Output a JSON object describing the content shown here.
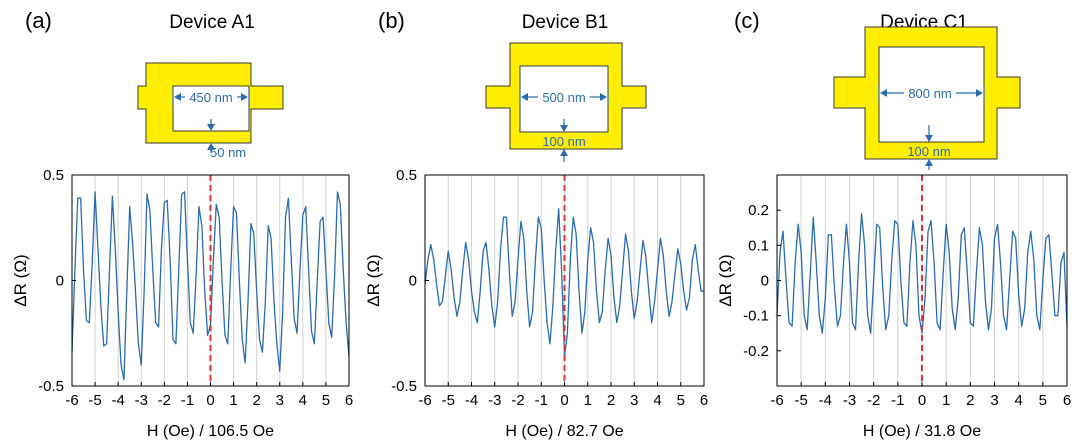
{
  "chart_data": [
    {
      "type": "line",
      "panel_label": "(a)",
      "title": "Device A1",
      "inset_labels": {
        "width": "450 nm",
        "line": "50 nm"
      },
      "xlabel": "H (Oe) / 106.5 Oe",
      "ylabel": "ΔR (Ω)",
      "xlim": [
        -6,
        6
      ],
      "ylim": [
        -0.5,
        0.5
      ],
      "xticks": [
        -6,
        -5,
        -4,
        -3,
        -2,
        -1,
        0,
        1,
        2,
        3,
        4,
        5,
        6
      ],
      "xtick_labels": [
        "-6",
        "-5",
        "-4",
        "-3",
        "-2",
        "-1",
        "0",
        "1",
        "2",
        "3",
        "4",
        "5",
        "6"
      ],
      "yticks": [
        -0.5,
        0,
        0.5
      ],
      "ytick_labels": [
        "-0.5",
        "0",
        "0.5"
      ],
      "grid": "vertical",
      "marker_line_x": 0,
      "series": [
        {
          "color": "#2a6bb0",
          "x": [
            -6,
            -5.875,
            -5.75,
            -5.625,
            -5.5,
            -5.375,
            -5.25,
            -5.125,
            -5,
            -4.875,
            -4.75,
            -4.625,
            -4.5,
            -4.375,
            -4.25,
            -4.125,
            -4,
            -3.875,
            -3.75,
            -3.625,
            -3.5,
            -3.375,
            -3.25,
            -3.125,
            -3,
            -2.875,
            -2.75,
            -2.625,
            -2.5,
            -2.375,
            -2.25,
            -2.125,
            -2,
            -1.875,
            -1.75,
            -1.625,
            -1.5,
            -1.375,
            -1.25,
            -1.125,
            -1,
            -0.875,
            -0.75,
            -0.625,
            -0.5,
            -0.375,
            -0.25,
            -0.125,
            0,
            0.125,
            0.25,
            0.375,
            0.5,
            0.625,
            0.75,
            0.875,
            1,
            1.125,
            1.25,
            1.375,
            1.5,
            1.625,
            1.75,
            1.875,
            2,
            2.125,
            2.25,
            2.375,
            2.5,
            2.625,
            2.75,
            2.875,
            3,
            3.125,
            3.25,
            3.375,
            3.5,
            3.625,
            3.75,
            3.875,
            4,
            4.125,
            4.25,
            4.375,
            4.5,
            4.625,
            4.75,
            4.875,
            5,
            5.125,
            5.25,
            5.375,
            5.5,
            5.625,
            5.75,
            5.875,
            6
          ],
          "y": [
            -0.34,
            0.05,
            0.39,
            0.39,
            0.05,
            -0.19,
            -0.2,
            0.08,
            0.42,
            0.15,
            -0.12,
            -0.31,
            -0.3,
            0.05,
            0.4,
            0.15,
            -0.15,
            -0.4,
            -0.47,
            -0.05,
            0.35,
            0.18,
            -0.05,
            -0.3,
            -0.4,
            -0.05,
            0.41,
            0.33,
            0.05,
            -0.2,
            -0.22,
            0.15,
            0.37,
            0.38,
            0.1,
            -0.28,
            -0.3,
            0.05,
            0.41,
            0.42,
            0.1,
            -0.2,
            -0.25,
            0.02,
            0.35,
            0.26,
            -0.05,
            -0.26,
            -0.21,
            0.1,
            0.36,
            0.3,
            0.0,
            -0.26,
            -0.3,
            0.05,
            0.35,
            0.32,
            0.0,
            -0.28,
            -0.39,
            -0.1,
            0.27,
            0.22,
            -0.05,
            -0.28,
            -0.34,
            -0.1,
            0.26,
            0.2,
            -0.1,
            -0.3,
            -0.43,
            -0.15,
            0.3,
            0.39,
            0.1,
            -0.18,
            -0.25,
            0.05,
            0.31,
            0.35,
            0.05,
            -0.24,
            -0.3,
            0.0,
            0.28,
            0.3,
            0.05,
            -0.2,
            -0.27,
            0.02,
            0.42,
            0.36,
            0.05,
            -0.2,
            -0.36
          ]
        }
      ]
    },
    {
      "type": "line",
      "panel_label": "(b)",
      "title": "Device B1",
      "inset_labels": {
        "width": "500 nm",
        "line": "100 nm"
      },
      "xlabel": "H (Oe) / 82.7 Oe",
      "ylabel": "ΔR (Ω)",
      "xlim": [
        -6,
        6
      ],
      "ylim": [
        -0.5,
        0.5
      ],
      "xticks": [
        -6,
        -5,
        -4,
        -3,
        -2,
        -1,
        0,
        1,
        2,
        3,
        4,
        5,
        6
      ],
      "xtick_labels": [
        "-6",
        "-5",
        "-4",
        "-3",
        "-2",
        "-1",
        "0",
        "1",
        "2",
        "3",
        "4",
        "5",
        "6"
      ],
      "yticks": [
        -0.5,
        0,
        0.5
      ],
      "ytick_labels": [
        "-0.5",
        "0",
        "0.5"
      ],
      "grid": "vertical",
      "marker_line_x": 0,
      "series": [
        {
          "color": "#2a6bb0",
          "x": [
            -6,
            -5.875,
            -5.75,
            -5.625,
            -5.5,
            -5.375,
            -5.25,
            -5.125,
            -5,
            -4.875,
            -4.75,
            -4.625,
            -4.5,
            -4.375,
            -4.25,
            -4.125,
            -4,
            -3.875,
            -3.75,
            -3.625,
            -3.5,
            -3.375,
            -3.25,
            -3.125,
            -3,
            -2.875,
            -2.75,
            -2.625,
            -2.5,
            -2.375,
            -2.25,
            -2.125,
            -2,
            -1.875,
            -1.75,
            -1.625,
            -1.5,
            -1.375,
            -1.25,
            -1.125,
            -1,
            -0.875,
            -0.75,
            -0.625,
            -0.5,
            -0.375,
            -0.25,
            -0.125,
            0,
            0.125,
            0.25,
            0.375,
            0.5,
            0.625,
            0.75,
            0.875,
            1,
            1.125,
            1.25,
            1.375,
            1.5,
            1.625,
            1.75,
            1.875,
            2,
            2.125,
            2.25,
            2.375,
            2.5,
            2.625,
            2.75,
            2.875,
            3,
            3.125,
            3.25,
            3.375,
            3.5,
            3.625,
            3.75,
            3.875,
            4,
            4.125,
            4.25,
            4.375,
            4.5,
            4.625,
            4.75,
            4.875,
            5,
            5.125,
            5.25,
            5.375,
            5.5,
            5.625,
            5.75,
            5.875,
            6
          ],
          "y": [
            -0.02,
            0.1,
            0.17,
            0.1,
            -0.02,
            -0.12,
            -0.1,
            0.02,
            0.14,
            0.05,
            -0.08,
            -0.17,
            -0.1,
            0.05,
            0.18,
            0.1,
            -0.05,
            -0.15,
            -0.2,
            -0.05,
            0.14,
            0.18,
            0.05,
            -0.12,
            -0.22,
            -0.1,
            0.15,
            0.3,
            0.3,
            0.05,
            -0.17,
            -0.1,
            0.1,
            0.28,
            0.2,
            -0.05,
            -0.22,
            -0.15,
            0.1,
            0.3,
            0.25,
            0.0,
            -0.2,
            -0.3,
            -0.12,
            0.15,
            0.34,
            0.05,
            -0.36,
            -0.25,
            0.1,
            0.3,
            0.22,
            -0.05,
            -0.25,
            -0.15,
            0.1,
            0.25,
            0.18,
            -0.05,
            -0.2,
            -0.15,
            0.05,
            0.2,
            0.12,
            -0.08,
            -0.2,
            -0.12,
            0.05,
            0.22,
            0.14,
            -0.05,
            -0.18,
            -0.1,
            0.05,
            0.19,
            0.11,
            -0.05,
            -0.2,
            -0.1,
            0.05,
            0.2,
            0.12,
            -0.05,
            -0.17,
            -0.1,
            0.03,
            0.15,
            0.08,
            -0.05,
            -0.14,
            -0.08,
            0.1,
            0.17,
            0.05,
            -0.05,
            -0.05
          ]
        }
      ]
    },
    {
      "type": "line",
      "panel_label": "(c)",
      "title": "Device C1",
      "inset_labels": {
        "width": "800 nm",
        "line": "100 nm"
      },
      "xlabel": "H (Oe) / 31.8 Oe",
      "ylabel": "ΔR (Ω)",
      "xlim": [
        -6,
        6
      ],
      "ylim": [
        -0.3,
        0.3
      ],
      "xticks": [
        -6,
        -5,
        -4,
        -3,
        -2,
        -1,
        0,
        1,
        2,
        3,
        4,
        5,
        6
      ],
      "xtick_labels": [
        "-6",
        "-5",
        "-4",
        "-3",
        "-2",
        "-1",
        "0",
        "1",
        "2",
        "3",
        "4",
        "5",
        "6"
      ],
      "yticks": [
        -0.2,
        -0.1,
        0,
        0.1,
        0.2
      ],
      "ytick_labels": [
        "-0.2",
        "-0.1",
        "0",
        "0.1",
        "0.2"
      ],
      "grid": "vertical",
      "marker_line_x": 0,
      "series": [
        {
          "color": "#2a6bb0",
          "x": [
            -6,
            -5.875,
            -5.75,
            -5.625,
            -5.5,
            -5.375,
            -5.25,
            -5.125,
            -5,
            -4.875,
            -4.75,
            -4.625,
            -4.5,
            -4.375,
            -4.25,
            -4.125,
            -4,
            -3.875,
            -3.75,
            -3.625,
            -3.5,
            -3.375,
            -3.25,
            -3.125,
            -3,
            -2.875,
            -2.75,
            -2.625,
            -2.5,
            -2.375,
            -2.25,
            -2.125,
            -2,
            -1.875,
            -1.75,
            -1.625,
            -1.5,
            -1.375,
            -1.25,
            -1.125,
            -1,
            -0.875,
            -0.75,
            -0.625,
            -0.5,
            -0.375,
            -0.25,
            -0.125,
            0,
            0.125,
            0.25,
            0.375,
            0.5,
            0.625,
            0.75,
            0.875,
            1,
            1.125,
            1.25,
            1.375,
            1.5,
            1.625,
            1.75,
            1.875,
            2,
            2.125,
            2.25,
            2.375,
            2.5,
            2.625,
            2.75,
            2.875,
            3,
            3.125,
            3.25,
            3.375,
            3.5,
            3.625,
            3.75,
            3.875,
            4,
            4.125,
            4.25,
            4.375,
            4.5,
            4.625,
            4.75,
            4.875,
            5,
            5.125,
            5.25,
            5.375,
            5.5,
            5.625,
            5.75,
            5.875,
            6
          ],
          "y": [
            -0.1,
            0.08,
            0.14,
            0.0,
            -0.12,
            -0.13,
            0.05,
            0.16,
            0.08,
            -0.1,
            -0.14,
            0.02,
            0.18,
            0.05,
            -0.1,
            -0.15,
            -0.05,
            0.13,
            0.13,
            -0.02,
            -0.13,
            -0.1,
            0.05,
            0.16,
            0.05,
            -0.12,
            -0.14,
            0.05,
            0.19,
            0.1,
            -0.1,
            -0.15,
            0.0,
            0.16,
            0.15,
            -0.02,
            -0.14,
            -0.1,
            0.06,
            0.17,
            0.16,
            0.0,
            -0.12,
            -0.13,
            0.05,
            0.17,
            0.1,
            -0.1,
            -0.15,
            -0.05,
            0.14,
            0.17,
            0.05,
            -0.12,
            -0.14,
            0.02,
            0.16,
            0.08,
            -0.08,
            -0.14,
            -0.05,
            0.13,
            0.15,
            0.02,
            -0.12,
            -0.13,
            0.02,
            0.15,
            0.1,
            -0.06,
            -0.14,
            -0.08,
            0.12,
            0.16,
            0.05,
            -0.1,
            -0.14,
            0.0,
            0.14,
            0.12,
            -0.04,
            -0.13,
            -0.08,
            0.08,
            0.14,
            0.06,
            -0.1,
            -0.14,
            0.0,
            0.12,
            0.13,
            0.02,
            -0.1,
            -0.1,
            0.05,
            0.08,
            -0.13
          ]
        }
      ]
    }
  ],
  "colors": {
    "device_fill": "#ffee00",
    "device_stroke": "#3a3a3a",
    "annotation": "#2a6bb0",
    "marker_line": "#e03030",
    "grid": "#d3d3d3"
  }
}
